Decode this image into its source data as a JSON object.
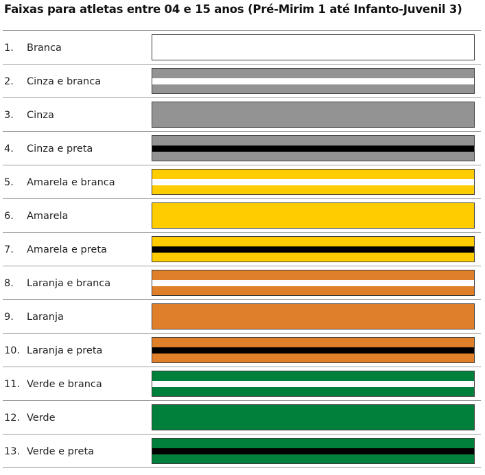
{
  "title": "Faixas para atletas entre 04 e 15 anos (Pré-Mirim 1 até Infanto-Juvenil 3)",
  "colors": {
    "branca": "#ffffff",
    "cinza": "#939393",
    "amarela": "#ffcc00",
    "laranja": "#e07f2a",
    "verde": "#00803a",
    "preta": "#000000"
  },
  "belts": [
    {
      "number": "1.",
      "name": "Branca",
      "base": "#ffffff",
      "stripe": null
    },
    {
      "number": "2.",
      "name": "Cinza e branca",
      "base": "#939393",
      "stripe": "#ffffff"
    },
    {
      "number": "3.",
      "name": "Cinza",
      "base": "#939393",
      "stripe": null
    },
    {
      "number": "4.",
      "name": "Cinza e preta",
      "base": "#939393",
      "stripe": "#000000"
    },
    {
      "number": "5.",
      "name": "Amarela e branca",
      "base": "#ffcc00",
      "stripe": "#ffffff"
    },
    {
      "number": "6.",
      "name": "Amarela",
      "base": "#ffcc00",
      "stripe": null
    },
    {
      "number": "7.",
      "name": "Amarela e preta",
      "base": "#ffcc00",
      "stripe": "#000000"
    },
    {
      "number": "8.",
      "name": "Laranja e branca",
      "base": "#e07f2a",
      "stripe": "#ffffff"
    },
    {
      "number": "9.",
      "name": "Laranja",
      "base": "#e07f2a",
      "stripe": null
    },
    {
      "number": "10.",
      "name": "Laranja e preta",
      "base": "#e07f2a",
      "stripe": "#000000"
    },
    {
      "number": "11.",
      "name": "Verde e branca",
      "base": "#00803a",
      "stripe": "#ffffff"
    },
    {
      "number": "12.",
      "name": "Verde",
      "base": "#00803a",
      "stripe": null
    },
    {
      "number": "13.",
      "name": "Verde e preta",
      "base": "#00803a",
      "stripe": "#000000"
    }
  ]
}
